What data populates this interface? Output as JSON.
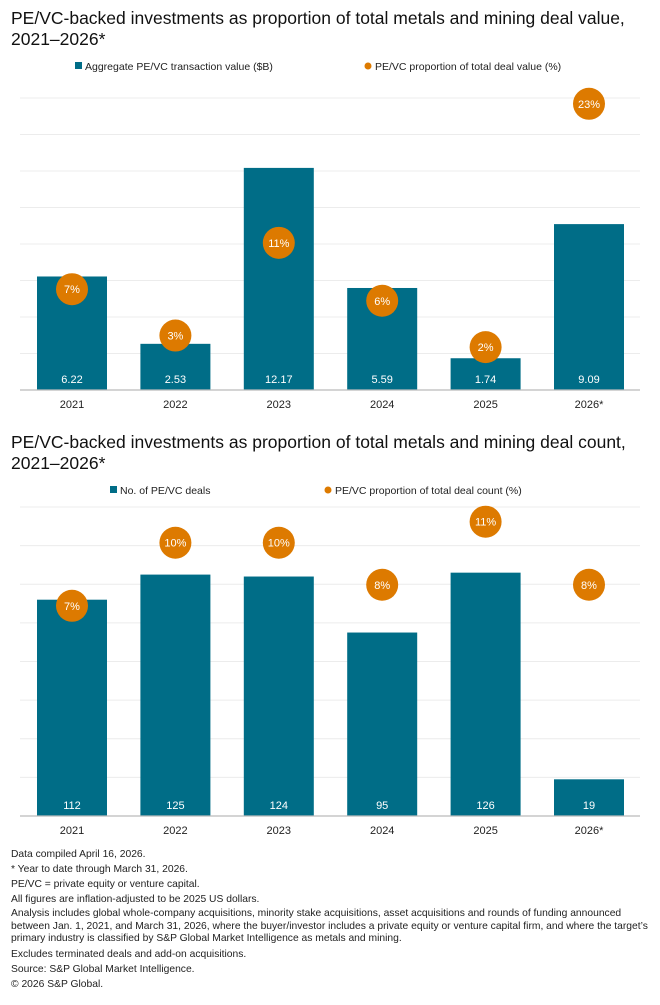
{
  "chart_data": [
    {
      "type": "bar",
      "title": "PE/VC-backed investments as proportion of total metals and mining deal value, 2021–2026*",
      "categories": [
        "2021",
        "2022",
        "2023",
        "2024",
        "2025",
        "2026*"
      ],
      "series": [
        {
          "name": "Aggregate PE/VC transaction value ($B)",
          "kind": "bar",
          "values": [
            6.22,
            2.53,
            12.17,
            5.59,
            1.74,
            9.09
          ],
          "labels": [
            "6.22",
            "2.53",
            "12.17",
            "5.59",
            "1.74",
            "9.09"
          ]
        },
        {
          "name": "PE/VC proportion of total deal value (%)",
          "kind": "dot",
          "values": [
            7,
            3,
            11,
            6,
            2,
            23
          ],
          "labels": [
            "7%",
            "3%",
            "11%",
            "6%",
            "2%",
            "23%"
          ]
        }
      ],
      "ylim": [
        0,
        16
      ],
      "y2lim": [
        -1.7,
        23.5
      ],
      "grid": true,
      "legend": "top-center"
    },
    {
      "type": "bar",
      "title": "PE/VC-backed investments as proportion of total metals and mining deal count, 2021–2026*",
      "categories": [
        "2021",
        "2022",
        "2023",
        "2024",
        "2025",
        "2026*"
      ],
      "series": [
        {
          "name": "No. of PE/VC deals",
          "kind": "bar",
          "values": [
            112,
            125,
            124,
            95,
            126,
            19
          ],
          "labels": [
            "112",
            "125",
            "124",
            "95",
            "126",
            "19"
          ]
        },
        {
          "name": "PE/VC proportion of total deal count (%)",
          "kind": "dot",
          "values": [
            7,
            10,
            10,
            8,
            11,
            8
          ],
          "labels": [
            "7%",
            "10%",
            "10%",
            "8%",
            "11%",
            "8%"
          ]
        }
      ],
      "ylim": [
        0,
        160
      ],
      "y2lim": [
        -3,
        11.7
      ],
      "grid": true,
      "legend": "top-center"
    }
  ],
  "colors": {
    "bar": "#006d87",
    "dot": "#dd7a00",
    "grid": "#ececec",
    "axis": "#bbbbbb"
  },
  "notes": [
    "Data compiled April 16, 2026.",
    "* Year to date through March 31, 2026.",
    "PE/VC = private equity or venture capital.",
    "All figures are inflation-adjusted to be 2025 US dollars.",
    "Analysis includes global whole-company acquisitions, minority stake acquisitions, asset acquisitions and rounds of funding announced between Jan. 1, 2021, and March 31, 2026, where the buyer/investor includes a private equity or venture capital firm, and where the target’s primary industry is classified by S&P Global Market Intelligence as metals and mining.",
    "Excludes terminated deals and add-on acquisitions.",
    "Source: S&P Global Market Intelligence.",
    "© 2026 S&P Global."
  ]
}
